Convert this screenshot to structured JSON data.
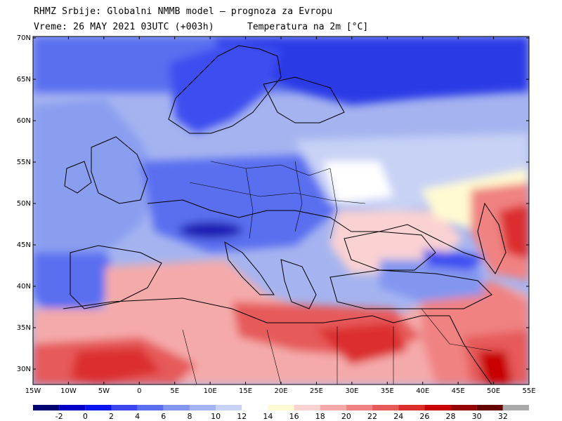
{
  "header": {
    "title_line1": "RHMZ Srbije: Globalni NMMB model — prognoza za Evropu",
    "title_line2": "Vreme: 26 MAY 2021 03UTC (+003h)",
    "title_line2b": "Temperatura na 2m [°C]"
  },
  "axes": {
    "lat_labels": [
      "70N",
      "65N",
      "60N",
      "55N",
      "50N",
      "45N",
      "40N",
      "35N",
      "30N"
    ],
    "lon_labels": [
      "15W",
      "10W",
      "5W",
      "0",
      "5E",
      "10E",
      "15E",
      "20E",
      "25E",
      "30E",
      "35E",
      "40E",
      "45E",
      "50E",
      "55E"
    ]
  },
  "colorbar": {
    "tick_labels": [
      "-2",
      "0",
      "2",
      "4",
      "6",
      "8",
      "10",
      "12",
      "14",
      "16",
      "18",
      "20",
      "22",
      "24",
      "26",
      "28",
      "30",
      "32"
    ],
    "colors": [
      "#000070",
      "#0000c8",
      "#0a14f0",
      "#3c46f0",
      "#5a6ef0",
      "#8296f0",
      "#a5b4f0",
      "#c8d2f5",
      "#ffffff",
      "#fffad2",
      "#fad2d2",
      "#f5aaaa",
      "#f08282",
      "#e65a5a",
      "#dc2d2d",
      "#c80000",
      "#960000",
      "#640000",
      "#aaaaaa"
    ]
  },
  "map_palette": {
    "deep_blue": "#1e28d2",
    "blue": "#3c4ef0",
    "mid_blue": "#6478f0",
    "light_blue": "#a5b4f0",
    "pale_blue": "#c8d2f5",
    "white": "#ffffff",
    "cream": "#fffad2",
    "pink": "#fad2d2",
    "light_red": "#f5aaaa",
    "red": "#f08282",
    "mid_red": "#e65a5a",
    "dark_red": "#dc2d2d",
    "very_dark_red": "#c80000"
  }
}
